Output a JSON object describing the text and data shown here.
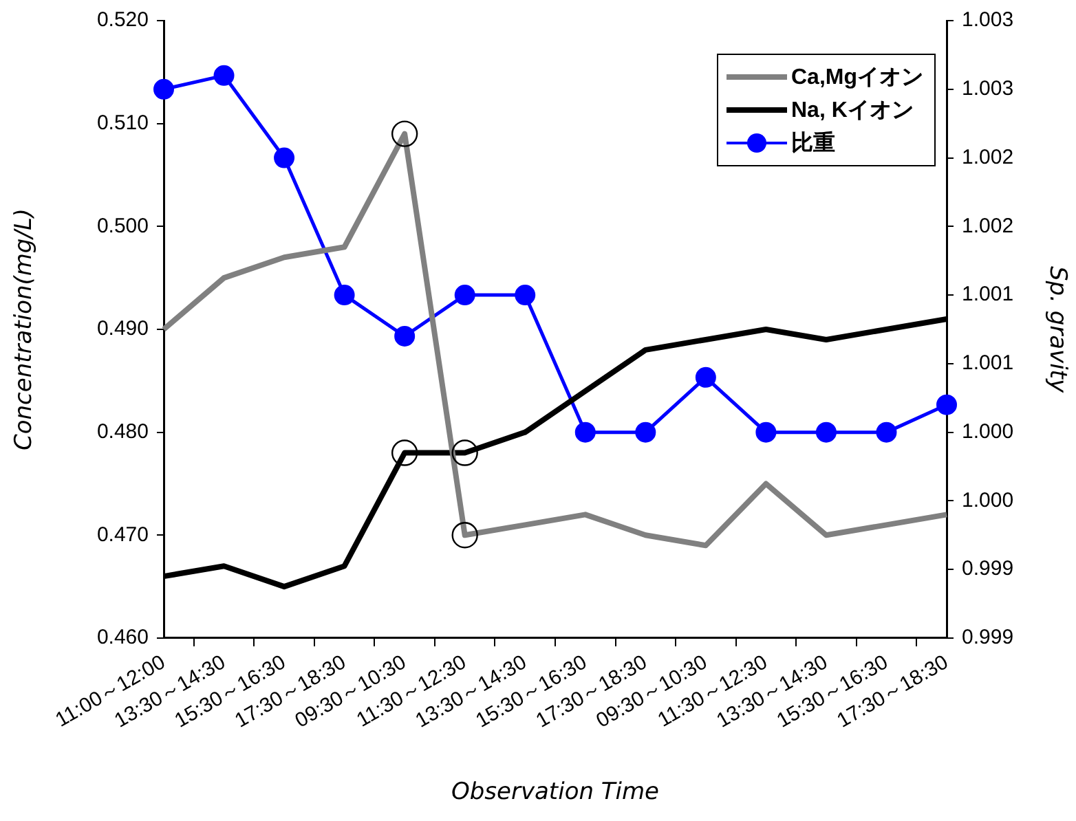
{
  "chart_data": {
    "type": "line",
    "xlabel": "Observation Time",
    "ylabel": "Concentration(mg/L)",
    "y2label": "Sp. gravity",
    "categories": [
      "11:00～12:00",
      "13:30～14:30",
      "15:30～16:30",
      "17:30～18:30",
      "09:30～10:30",
      "11:30～12:30",
      "13:30～14:30",
      "15:30～16:30",
      "17:30～18:30",
      "09:30～10:30",
      "11:30～12:30",
      "13:30～14:30",
      "15:30～16:30",
      "17:30～18:30"
    ],
    "series": [
      {
        "name": "Ca,Mgイオン",
        "color": "#808080",
        "marker": "none",
        "values": [
          0.49,
          0.495,
          0.497,
          0.498,
          0.509,
          0.47,
          0.471,
          0.472,
          0.47,
          0.469,
          0.475,
          0.47,
          0.471,
          0.472
        ]
      },
      {
        "name": "Na, Kイオン",
        "color": "#000000",
        "marker": "none",
        "values": [
          0.466,
          0.467,
          0.465,
          0.467,
          0.478,
          0.478,
          0.48,
          0.484,
          0.488,
          0.489,
          0.49,
          0.489,
          0.49,
          0.491
        ]
      },
      {
        "name": "比重",
        "color": "#0000ff",
        "marker": "circle",
        "axis": "y2",
        "values": [
          1.0025,
          1.0026,
          1.002,
          1.001,
          1.0007,
          1.001,
          1.001,
          1.0,
          1.0,
          1.0004,
          1.0,
          1.0,
          1.0,
          1.0002
        ]
      },
      {
        "type": "scatter",
        "color": "#000000",
        "marker": "circle",
        "values": [
          null,
          null,
          null,
          null,
          0.509,
          0.47,
          null,
          null,
          null,
          null,
          null,
          null,
          null,
          null
        ]
      },
      {
        "type": "scatter",
        "color": "#000000",
        "marker": "circle",
        "values": [
          null,
          null,
          null,
          null,
          0.478,
          0.478,
          null,
          null,
          null,
          null,
          null,
          null,
          null,
          null
        ]
      }
    ],
    "ylim": [
      0.46,
      0.52
    ],
    "yticks": [
      {
        "value": 0.46,
        "label": "0.460"
      },
      {
        "value": 0.47,
        "label": "0.470"
      },
      {
        "value": 0.48,
        "label": "0.480"
      },
      {
        "value": 0.49,
        "label": "0.490"
      },
      {
        "value": 0.5,
        "label": "0.500"
      },
      {
        "value": 0.51,
        "label": "0.510"
      },
      {
        "value": 0.52,
        "label": "0.520"
      }
    ],
    "y2lim": [
      0.9985,
      1.003
    ],
    "y2ticks": [
      {
        "value": 0.9985,
        "label": "0.999"
      },
      {
        "value": 0.999,
        "label": "0.999"
      },
      {
        "value": 0.9995,
        "label": "1.000"
      },
      {
        "value": 1.0,
        "label": "1.000"
      },
      {
        "value": 1.0005,
        "label": "1.001"
      },
      {
        "value": 1.001,
        "label": "1.001"
      },
      {
        "value": 1.0015,
        "label": "1.002"
      },
      {
        "value": 1.002,
        "label": "1.002"
      },
      {
        "value": 1.0025,
        "label": "1.003"
      },
      {
        "value": 1.003,
        "label": "1.003"
      }
    ],
    "grid": false,
    "legend": "top right"
  }
}
